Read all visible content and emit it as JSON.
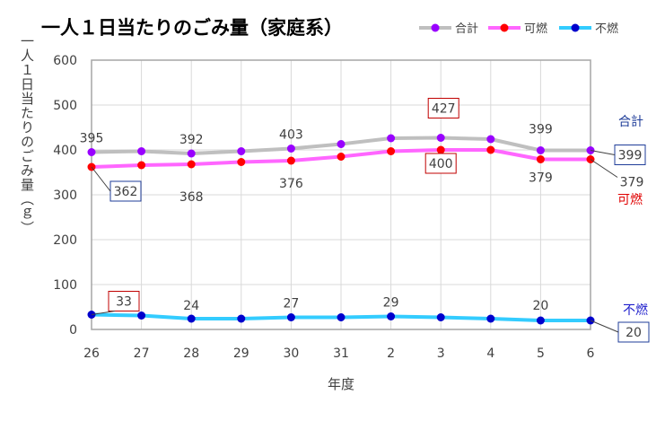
{
  "chart_data": {
    "type": "line",
    "title": "一人１日当たりのごみ量（家庭系）",
    "xlabel": "年度",
    "ylabel": "一人１日当たりのごみ量（ｇ）",
    "categories": [
      "26",
      "27",
      "28",
      "29",
      "30",
      "31",
      "2",
      "3",
      "4",
      "5",
      "6"
    ],
    "ylim": [
      0,
      600
    ],
    "yticks": [
      0,
      100,
      200,
      300,
      400,
      500,
      600
    ],
    "grid": true,
    "legend_position": "top-right",
    "series": [
      {
        "name": "合計",
        "color": "#bfbfbf",
        "marker_color": "#9900ff",
        "values": [
          395,
          397,
          392,
          397,
          403,
          413,
          426,
          427,
          424,
          399,
          399
        ]
      },
      {
        "name": "可燃",
        "color": "#ff66ff",
        "marker_color": "#ff0000",
        "values": [
          362,
          366,
          368,
          373,
          376,
          385,
          397,
          400,
          400,
          379,
          379
        ]
      },
      {
        "name": "不燃",
        "color": "#33ccff",
        "marker_color": "#0000cc",
        "values": [
          33,
          31,
          24,
          24,
          27,
          27,
          29,
          27,
          24,
          20,
          20
        ]
      }
    ],
    "data_labels": [
      {
        "series": 0,
        "index": 0,
        "text": "395",
        "boxed": false
      },
      {
        "series": 0,
        "index": 2,
        "text": "392",
        "boxed": false
      },
      {
        "series": 0,
        "index": 4,
        "text": "403",
        "boxed": false
      },
      {
        "series": 0,
        "index": 7,
        "text": "427",
        "boxed": true,
        "box_color": "#c00000"
      },
      {
        "series": 0,
        "index": 9,
        "text": "399",
        "boxed": false
      },
      {
        "series": 0,
        "index": 10,
        "text": "399",
        "boxed": true,
        "box_color": "#1f3d99"
      },
      {
        "series": 1,
        "index": 0,
        "text": "362",
        "boxed": true,
        "box_color": "#1f3d99"
      },
      {
        "series": 1,
        "index": 2,
        "text": "368",
        "boxed": false
      },
      {
        "series": 1,
        "index": 4,
        "text": "376",
        "boxed": false
      },
      {
        "series": 1,
        "index": 7,
        "text": "400",
        "boxed": true,
        "box_color": "#c00000"
      },
      {
        "series": 1,
        "index": 9,
        "text": "379",
        "boxed": false
      },
      {
        "series": 1,
        "index": 10,
        "text": "379",
        "boxed": false
      },
      {
        "series": 2,
        "index": 0,
        "text": "33",
        "boxed": true,
        "box_color": "#c00000"
      },
      {
        "series": 2,
        "index": 2,
        "text": "24",
        "boxed": false
      },
      {
        "series": 2,
        "index": 4,
        "text": "27",
        "boxed": false
      },
      {
        "series": 2,
        "index": 6,
        "text": "29",
        "boxed": false
      },
      {
        "series": 2,
        "index": 9,
        "text": "20",
        "boxed": false
      },
      {
        "series": 2,
        "index": 10,
        "text": "20",
        "boxed": true,
        "box_color": "#1f3d99"
      }
    ],
    "series_end_labels": [
      {
        "series": 0,
        "text": "合計",
        "color": "#1f3d99"
      },
      {
        "series": 1,
        "text": "可燃",
        "color": "#e00000"
      },
      {
        "series": 2,
        "text": "不燃",
        "color": "#1f1fcc"
      }
    ]
  }
}
